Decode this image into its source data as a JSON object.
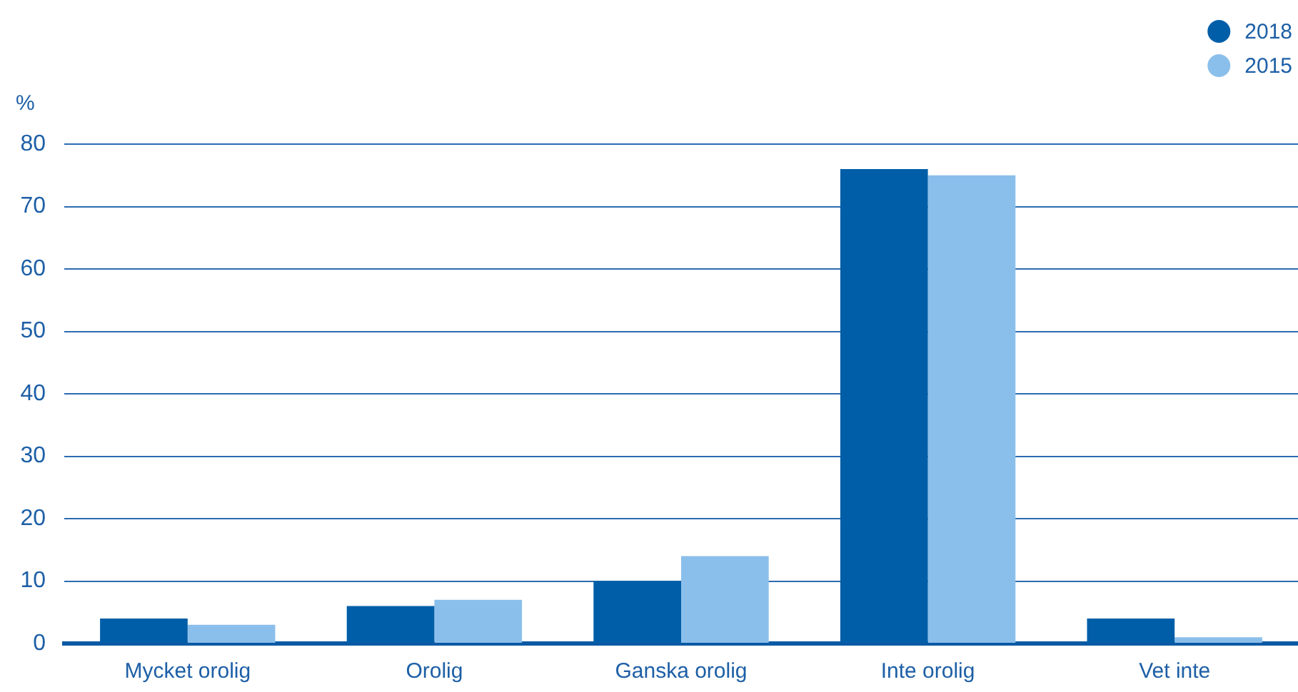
{
  "chart_data": {
    "type": "bar",
    "ylabel": "%",
    "categories": [
      "Mycket orolig",
      "Orolig",
      "Ganska orolig",
      "Inte orolig",
      "Vet inte"
    ],
    "series": [
      {
        "name": "2018",
        "color": "#005ea8",
        "values": [
          4,
          6,
          10,
          76,
          4
        ]
      },
      {
        "name": "2015",
        "color": "#8bbfeb",
        "values": [
          3,
          7,
          14,
          75,
          1
        ]
      }
    ],
    "ylim": [
      0,
      80
    ],
    "yticks": [
      0,
      10,
      20,
      30,
      40,
      50,
      60,
      70,
      80
    ],
    "grid": "y",
    "legend": "top right"
  }
}
